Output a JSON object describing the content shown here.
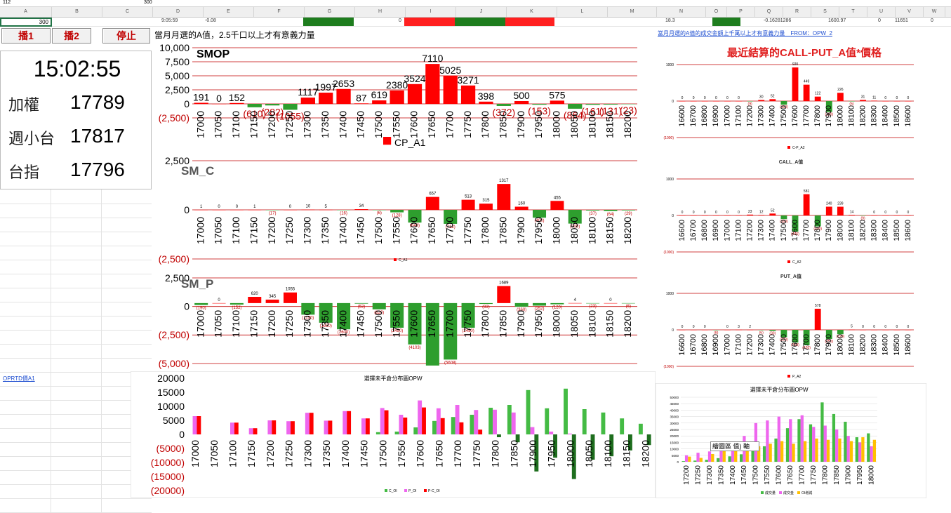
{
  "topbar": {
    "namebox": "112",
    "formula": "300"
  },
  "columns": [
    "A",
    "B",
    "C",
    "D",
    "E",
    "F",
    "G",
    "H",
    "I",
    "J",
    "K",
    "L",
    "M",
    "N",
    "O",
    "P",
    "Q",
    "R",
    "S",
    "T",
    "U",
    "V",
    "W"
  ],
  "row1": {
    "a": "300",
    "d": "9:05:59",
    "e": "-0.08",
    "i": "0",
    "n": "18.3",
    "r": "-0.16281286",
    "t": "1600.97",
    "u": "0",
    "v": "11651",
    "w": "0"
  },
  "buttons": {
    "play1": "播1",
    "play2": "播2",
    "stop": "停止"
  },
  "clock": "15:02:55",
  "stats": [
    {
      "label": "加權",
      "value": "17789"
    },
    {
      "label": "週小台",
      "value": "17817"
    },
    {
      "label": "台指",
      "value": "17796"
    }
  ],
  "header_note": "當月月選的A值，2.5千口以上才有意義力量",
  "right_link": "當月月選的A值的成交金額上千萬以上才有意義力量　FROM：OPW_2",
  "right_title": "最近結算的CALL-PUT_A值*價格",
  "sheet_link": "OPRTD價A1",
  "tooltip": "繪圖區 值) 軸",
  "colors": {
    "pos": "#ff0000",
    "neg": "#2e9e2e",
    "pink": "#ee66ee",
    "orange": "#ffc000",
    "green2": "#44bb44"
  },
  "chart_data": [
    {
      "id": "smop",
      "type": "bar",
      "title": "SMOP",
      "legend": "CP_A1",
      "ylim": [
        -2500,
        10000
      ],
      "yticks": [
        "10,000",
        "7,500",
        "5,000",
        "2,500",
        "0",
        "(2,500)"
      ],
      "categories": [
        "17000",
        "17050",
        "17100",
        "17150",
        "17200",
        "17250",
        "17300",
        "17350",
        "17400",
        "17450",
        "17500",
        "17550",
        "17600",
        "17650",
        "17700",
        "17750",
        "17800",
        "17850",
        "17900",
        "17950",
        "18000",
        "18050",
        "18100",
        "18150",
        "18200"
      ],
      "values": [
        191,
        0,
        152,
        -610,
        -282,
        -1055,
        1117,
        1997,
        2653,
        87,
        619,
        2380,
        3524,
        7110,
        5025,
        3271,
        398,
        -372,
        500,
        -153,
        575,
        -864,
        -161,
        -131,
        -23
      ],
      "labels": [
        "191",
        "0",
        "152",
        "(610)",
        "(282)",
        "(1055)",
        "1117",
        "1997",
        "2653",
        "87",
        "619",
        "2380",
        "3524",
        "7110",
        "5025",
        "3271",
        "398",
        "(372)",
        "500",
        "(153)",
        "575",
        "(864)",
        "(161)",
        "(131)",
        "(23)"
      ]
    },
    {
      "id": "smc",
      "type": "bar",
      "title": "SM_C",
      "legend": "C_A1",
      "ylim": [
        -2500,
        2500
      ],
      "yticks": [
        "2,500",
        "0",
        "(2,500)"
      ],
      "categories": [
        "17000",
        "17050",
        "17100",
        "17150",
        "17200",
        "17250",
        "17300",
        "17350",
        "17400",
        "17450",
        "17500",
        "17550",
        "17600",
        "17650",
        "17700",
        "17750",
        "17800",
        "17850",
        "17900",
        "17950",
        "18000",
        "18050",
        "18100",
        "18150",
        "18200"
      ],
      "values": [
        1,
        0,
        0,
        1,
        -17,
        0,
        10,
        5,
        -16,
        34,
        -6,
        -128,
        -648,
        657,
        -712,
        513,
        315,
        1317,
        160,
        -400,
        455,
        -700,
        -37,
        -64,
        -29
      ],
      "labels": [
        "1",
        "0",
        "0",
        "1",
        "(17)",
        "0",
        "10",
        "5",
        "(16)",
        "34",
        "(6)",
        "(128)",
        "(648)",
        "657",
        "(712)",
        "513",
        "315",
        "1317",
        "160",
        "(400)",
        "455",
        "(700)",
        "(37)",
        "(64)",
        "(29)"
      ]
    },
    {
      "id": "smp",
      "type": "bar",
      "title": "SM_P",
      "legend": "",
      "ylim": [
        -6000,
        2500
      ],
      "yticks": [
        "2,500",
        "0",
        "(2,500)",
        "(5,000)"
      ],
      "categories": [
        "17000",
        "17050",
        "17100",
        "17150",
        "17200",
        "17250",
        "17300",
        "17350",
        "17400",
        "17450",
        "17500",
        "17550",
        "17600",
        "17650",
        "17700",
        "17750",
        "17800",
        "17850",
        "17900",
        "17950",
        "18000",
        "18050",
        "18100",
        "18150",
        "18200"
      ],
      "values": [
        -190,
        0,
        -152,
        620,
        345,
        1055,
        -1150,
        -1950,
        -2600,
        -53,
        -620,
        -2450,
        -4103,
        -6200,
        -5608,
        -2450,
        -83,
        1689,
        -360,
        -252,
        -120,
        4,
        -23,
        0,
        -6
      ],
      "labels": [
        "(190)",
        "0",
        "(152)",
        "620",
        "345",
        "1055",
        "(1150)",
        "(1950)",
        "(2600)",
        "(53)",
        "(620)",
        "(2450)",
        "(4103)",
        "",
        "(5608)",
        "(2450)",
        "(83)",
        "1689",
        "(360)",
        "(252)",
        "(120)",
        "4",
        "(23)",
        "0",
        "(6)"
      ]
    },
    {
      "id": "oi",
      "type": "bar",
      "title": "選擇未平倉分布圖OPW",
      "ylim": [
        -20000,
        20000
      ],
      "yticks": [
        "20000",
        "15000",
        "10000",
        "5000",
        "0",
        "(5000)",
        "(10000)",
        "(15000)",
        "(20000)"
      ],
      "categories": [
        "17000",
        "17050",
        "17100",
        "17150",
        "17200",
        "17250",
        "17300",
        "17350",
        "17400",
        "17450",
        "17500",
        "17550",
        "17600",
        "17650",
        "17700",
        "17750",
        "17800",
        "17850",
        "17900",
        "17950",
        "18000",
        "18050",
        "18100",
        "18150",
        "18200"
      ],
      "series": [
        {
          "name": "C_OI",
          "values": [
            0,
            0,
            0,
            0,
            0,
            0,
            0,
            0,
            0,
            0,
            800,
            1000,
            2500,
            4800,
            6200,
            7000,
            9500,
            10500,
            15800,
            9300,
            16300,
            9000,
            7800,
            5700,
            3800
          ]
        },
        {
          "name": "P_OI",
          "values": [
            6500,
            0,
            4200,
            2200,
            5000,
            4700,
            7700,
            4900,
            8300,
            5700,
            9400,
            7000,
            12100,
            9300,
            10500,
            8700,
            8800,
            7800,
            2600,
            1000,
            300,
            0,
            0,
            0,
            0
          ]
        },
        {
          "name": "P-C_OI",
          "values": [
            6500,
            0,
            4200,
            2200,
            5000,
            4700,
            7700,
            4900,
            8300,
            5700,
            8600,
            6000,
            9600,
            5800,
            4300,
            1700,
            -1000,
            -2800,
            -13200,
            -8300,
            -15900,
            -9000,
            -7800,
            -5700,
            -3800
          ]
        }
      ],
      "legend": [
        "C_OI",
        "P_OI",
        "P-C_OI"
      ]
    },
    {
      "id": "r1",
      "type": "bar",
      "legend": "C-P_A2",
      "yticks": [
        "1000",
        "0",
        "(1000)"
      ],
      "ylim": [
        -1000,
        1000
      ],
      "categories": [
        "16600",
        "16700",
        "16800",
        "16900",
        "17000",
        "17100",
        "17200",
        "17300",
        "17400",
        "17500",
        "17600",
        "17700",
        "17800",
        "17900",
        "18000",
        "18100",
        "18200",
        "18300",
        "18400",
        "18500",
        "18600"
      ],
      "values": [
        0,
        0,
        0,
        0,
        0,
        0,
        -9,
        30,
        52,
        -100,
        920,
        449,
        122,
        -300,
        226,
        -5,
        31,
        11,
        0,
        0,
        0
      ],
      "labels": [
        "0",
        "0",
        "0",
        "0",
        "0",
        "0",
        "(9)",
        "30",
        "52",
        "(100)",
        "920",
        "449",
        "122",
        "(300)",
        "226",
        "(5)",
        "31",
        "11",
        "0",
        "0",
        "0"
      ]
    },
    {
      "id": "r2",
      "type": "bar",
      "title": "CALL_A值",
      "legend": "C_A2",
      "yticks": [
        "1000",
        "0",
        "(1000)"
      ],
      "ylim": [
        -1000,
        1000
      ],
      "categories": [
        "16600",
        "16700",
        "16800",
        "16900",
        "17000",
        "17100",
        "17200",
        "17300",
        "17400",
        "17500",
        "17600",
        "17700",
        "17800",
        "17900",
        "18000",
        "18100",
        "18200",
        "18300",
        "18400",
        "18500",
        "18600"
      ],
      "values": [
        0,
        0,
        0,
        0,
        0,
        0,
        23,
        12,
        52,
        -100,
        -446,
        581,
        -300,
        240,
        239,
        14,
        -9,
        0,
        0,
        0,
        0
      ],
      "labels": [
        "0",
        "0",
        "0",
        "0",
        "0",
        "0",
        "23",
        "12",
        "52",
        "(100)",
        "(446)",
        "581",
        "(300)",
        "240",
        "239",
        "14",
        "(9)",
        "0",
        "0",
        "0",
        "0"
      ]
    },
    {
      "id": "r3",
      "type": "bar",
      "title": "PUT_A值",
      "legend": "P_A2",
      "yticks": [
        "1000",
        "0",
        "(1000)"
      ],
      "ylim": [
        -1000,
        1000
      ],
      "categories": [
        "16600",
        "16700",
        "16800",
        "16900",
        "17000",
        "17100",
        "17200",
        "17300",
        "17400",
        "17500",
        "17600",
        "17700",
        "17800",
        "17900",
        "18000",
        "18100",
        "18200",
        "18300",
        "18400",
        "18500",
        "18600"
      ],
      "values": [
        0,
        0,
        0,
        -8,
        0,
        3,
        2,
        -6,
        -30,
        -200,
        -350,
        -420,
        578,
        -250,
        -120,
        5,
        0,
        0,
        0,
        0,
        0
      ],
      "labels": [
        "0",
        "0",
        "0",
        "(8)",
        "0",
        "3",
        "2",
        "(6)",
        "(30)",
        "(200)",
        "(350)",
        "(420)",
        "578",
        "(250)",
        "(120)",
        "5",
        "0",
        "0",
        "0",
        "0",
        "0"
      ]
    },
    {
      "id": "r4",
      "type": "bar",
      "title": "選擇未平倉分布圖OPW",
      "ylim": [
        0,
        50000
      ],
      "yticks": [
        "50000",
        "45000",
        "40000",
        "35000",
        "30000",
        "25000",
        "20000",
        "15000",
        "10000",
        "5000",
        "0"
      ],
      "categories": [
        "17200",
        "17250",
        "17300",
        "17350",
        "17400",
        "17450",
        "17500",
        "17550",
        "17600",
        "17650",
        "17700",
        "17750",
        "17800",
        "17850",
        "17900",
        "17950",
        "18000"
      ],
      "series": [
        {
          "name": "成交量",
          "values": [
            500,
            900,
            1500,
            2800,
            4200,
            5800,
            9000,
            12000,
            18000,
            26000,
            33000,
            29000,
            46000,
            37000,
            31000,
            19000,
            22000
          ]
        },
        {
          "name": "成交金",
          "values": [
            5000,
            7000,
            8000,
            12000,
            13000,
            20000,
            30000,
            32000,
            35000,
            33000,
            36000,
            27000,
            28000,
            25000,
            20000,
            15000,
            12000
          ]
        },
        {
          "name": "OI增減",
          "values": [
            4000,
            3000,
            6000,
            9000,
            10000,
            11000,
            12000,
            14000,
            16000,
            14000,
            16000,
            18000,
            17000,
            18000,
            16000,
            19000,
            17000
          ]
        }
      ],
      "legend": [
        "成交量",
        "成交金",
        "OI增減"
      ]
    }
  ]
}
